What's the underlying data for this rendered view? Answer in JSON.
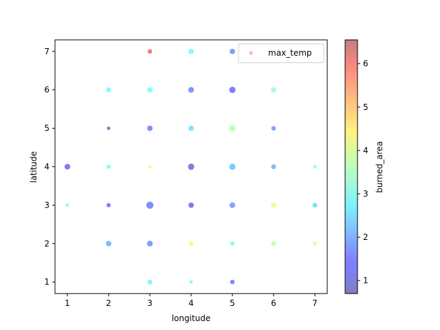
{
  "chart_data": {
    "type": "scatter",
    "xlabel": "longitude",
    "ylabel": "latitude",
    "xlim": [
      0.7,
      7.3
    ],
    "ylim": [
      0.7,
      7.3
    ],
    "xticks": [
      1,
      2,
      3,
      4,
      5,
      6,
      7
    ],
    "yticks": [
      1,
      2,
      3,
      4,
      5,
      6,
      7
    ],
    "legend": {
      "label": "max_temp",
      "placement": "top-right",
      "marker_color": "#ff8060"
    },
    "colorbar": {
      "label": "burned_area",
      "range": [
        0.7,
        6.55
      ],
      "ticks": [
        1,
        2,
        3,
        4,
        5,
        6
      ],
      "colormap": "jet"
    },
    "marker_alpha": 0.5,
    "points": [
      {
        "x": 3,
        "y": 7,
        "burned_area": 6.0,
        "max_temp": 22
      },
      {
        "x": 4,
        "y": 7,
        "burned_area": 2.9,
        "max_temp": 28
      },
      {
        "x": 5,
        "y": 7,
        "burned_area": 1.8,
        "max_temp": 28
      },
      {
        "x": 2,
        "y": 6,
        "burned_area": 2.9,
        "max_temp": 24
      },
      {
        "x": 3,
        "y": 6,
        "burned_area": 2.9,
        "max_temp": 28
      },
      {
        "x": 4,
        "y": 6,
        "burned_area": 1.7,
        "max_temp": 30
      },
      {
        "x": 5,
        "y": 6,
        "burned_area": 1.4,
        "max_temp": 34
      },
      {
        "x": 6,
        "y": 6,
        "burned_area": 3.4,
        "max_temp": 28
      },
      {
        "x": 2,
        "y": 5,
        "burned_area": 0.8,
        "max_temp": 14
      },
      {
        "x": 3,
        "y": 5,
        "burned_area": 1.6,
        "max_temp": 28
      },
      {
        "x": 4,
        "y": 5,
        "burned_area": 2.6,
        "max_temp": 28
      },
      {
        "x": 5,
        "y": 5,
        "burned_area": 3.6,
        "max_temp": 34
      },
      {
        "x": 6,
        "y": 5,
        "burned_area": 1.9,
        "max_temp": 22
      },
      {
        "x": 1,
        "y": 4,
        "burned_area": 1.2,
        "max_temp": 30
      },
      {
        "x": 2,
        "y": 4,
        "burned_area": 3.0,
        "max_temp": 20
      },
      {
        "x": 3,
        "y": 4,
        "burned_area": 4.4,
        "max_temp": 14
      },
      {
        "x": 4,
        "y": 4,
        "burned_area": 1.1,
        "max_temp": 34
      },
      {
        "x": 5,
        "y": 4,
        "burned_area": 2.3,
        "max_temp": 34
      },
      {
        "x": 6,
        "y": 4,
        "burned_area": 2.1,
        "max_temp": 24
      },
      {
        "x": 7,
        "y": 4,
        "burned_area": 3.3,
        "max_temp": 18
      },
      {
        "x": 1,
        "y": 3,
        "burned_area": 2.9,
        "max_temp": 14
      },
      {
        "x": 2,
        "y": 3,
        "burned_area": 1.4,
        "max_temp": 20
      },
      {
        "x": 3,
        "y": 3,
        "burned_area": 1.6,
        "max_temp": 40
      },
      {
        "x": 4,
        "y": 3,
        "burned_area": 1.1,
        "max_temp": 28
      },
      {
        "x": 5,
        "y": 3,
        "burned_area": 1.9,
        "max_temp": 30
      },
      {
        "x": 6,
        "y": 3,
        "burned_area": 4.1,
        "max_temp": 28
      },
      {
        "x": 7,
        "y": 3,
        "burned_area": 2.5,
        "max_temp": 24
      },
      {
        "x": 2,
        "y": 2,
        "burned_area": 2.1,
        "max_temp": 28
      },
      {
        "x": 3,
        "y": 2,
        "burned_area": 1.8,
        "max_temp": 30
      },
      {
        "x": 4,
        "y": 2,
        "burned_area": 4.2,
        "max_temp": 24
      },
      {
        "x": 5,
        "y": 2,
        "burned_area": 3.0,
        "max_temp": 20
      },
      {
        "x": 6,
        "y": 2,
        "burned_area": 3.8,
        "max_temp": 24
      },
      {
        "x": 7,
        "y": 2,
        "burned_area": 4.0,
        "max_temp": 20
      },
      {
        "x": 3,
        "y": 1,
        "burned_area": 2.8,
        "max_temp": 24
      },
      {
        "x": 4,
        "y": 1,
        "burned_area": 3.0,
        "max_temp": 14
      },
      {
        "x": 5,
        "y": 1,
        "burned_area": 1.6,
        "max_temp": 22
      }
    ]
  }
}
